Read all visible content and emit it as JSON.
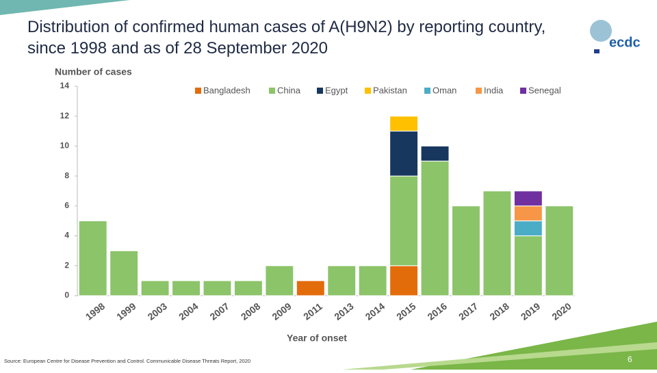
{
  "chart_data": {
    "type": "stacked_bar",
    "title": "Distribution of confirmed human cases of A(H9N2) by reporting country, since 1998 and as of 28 September 2020",
    "y_label": "Number of cases",
    "x_label": "Year of onset",
    "categories": [
      "1998",
      "1999",
      "2003",
      "2004",
      "2007",
      "2008",
      "2009",
      "2011",
      "2013",
      "2014",
      "2015",
      "2016",
      "2017",
      "2018",
      "2019",
      "2020"
    ],
    "series": [
      {
        "name": "Bangladesh",
        "color": "#e36c0a",
        "values": [
          0,
          0,
          0,
          0,
          0,
          0,
          0,
          1,
          0,
          0,
          2,
          0,
          0,
          0,
          0,
          0
        ]
      },
      {
        "name": "China",
        "color": "#8cc46a",
        "values": [
          5,
          3,
          1,
          1,
          1,
          1,
          2,
          0,
          2,
          2,
          6,
          9,
          6,
          7,
          4,
          6
        ]
      },
      {
        "name": "Egypt",
        "color": "#17375e",
        "values": [
          0,
          0,
          0,
          0,
          0,
          0,
          0,
          0,
          0,
          0,
          3,
          1,
          0,
          0,
          0,
          0
        ]
      },
      {
        "name": "Pakistan",
        "color": "#ffc000",
        "values": [
          0,
          0,
          0,
          0,
          0,
          0,
          0,
          0,
          0,
          0,
          1,
          0,
          0,
          0,
          0,
          0
        ]
      },
      {
        "name": "Oman",
        "color": "#4bacc6",
        "values": [
          0,
          0,
          0,
          0,
          0,
          0,
          0,
          0,
          0,
          0,
          0,
          0,
          0,
          0,
          1,
          0
        ]
      },
      {
        "name": "India",
        "color": "#f79646",
        "values": [
          0,
          0,
          0,
          0,
          0,
          0,
          0,
          0,
          0,
          0,
          0,
          0,
          0,
          0,
          1,
          0
        ]
      },
      {
        "name": "Senegal",
        "color": "#7030a0",
        "values": [
          0,
          0,
          0,
          0,
          0,
          0,
          0,
          0,
          0,
          0,
          0,
          0,
          0,
          0,
          1,
          0
        ]
      }
    ],
    "ylim": [
      0,
      14
    ],
    "yticks": [
      0,
      2,
      4,
      6,
      8,
      10,
      12,
      14
    ],
    "grid": false,
    "legend": "top"
  },
  "logo": "ecdc",
  "footer": {
    "source": "Source: European Centre for Disease Prevention and Control. Communicable Disease Threats Report, 2020",
    "page": 6
  }
}
